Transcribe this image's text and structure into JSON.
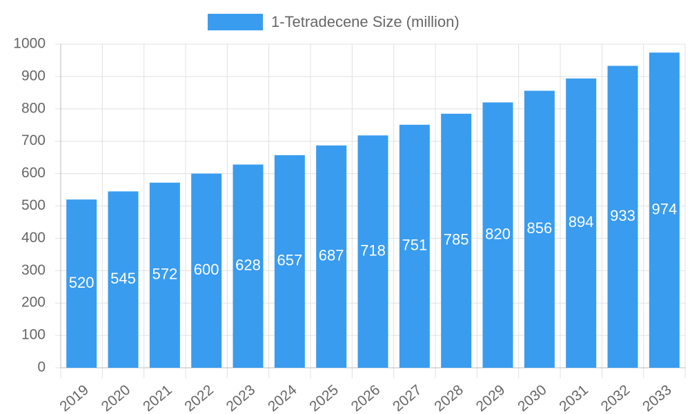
{
  "chart_data": {
    "type": "bar",
    "series": [
      {
        "name": "1-Tetradecene Size (million)",
        "color": "#399cef",
        "values": [
          520,
          545,
          572,
          600,
          628,
          657,
          687,
          718,
          751,
          785,
          820,
          856,
          894,
          933,
          974
        ]
      }
    ],
    "categories": [
      "2019",
      "2020",
      "2021",
      "2022",
      "2023",
      "2024",
      "2025",
      "2026",
      "2027",
      "2028",
      "2029",
      "2030",
      "2031",
      "2032",
      "2033"
    ],
    "ylim": [
      0,
      1000
    ],
    "yticks": [
      0,
      100,
      200,
      300,
      400,
      500,
      600,
      700,
      800,
      900,
      1000
    ],
    "grid": true,
    "legend": "top"
  }
}
